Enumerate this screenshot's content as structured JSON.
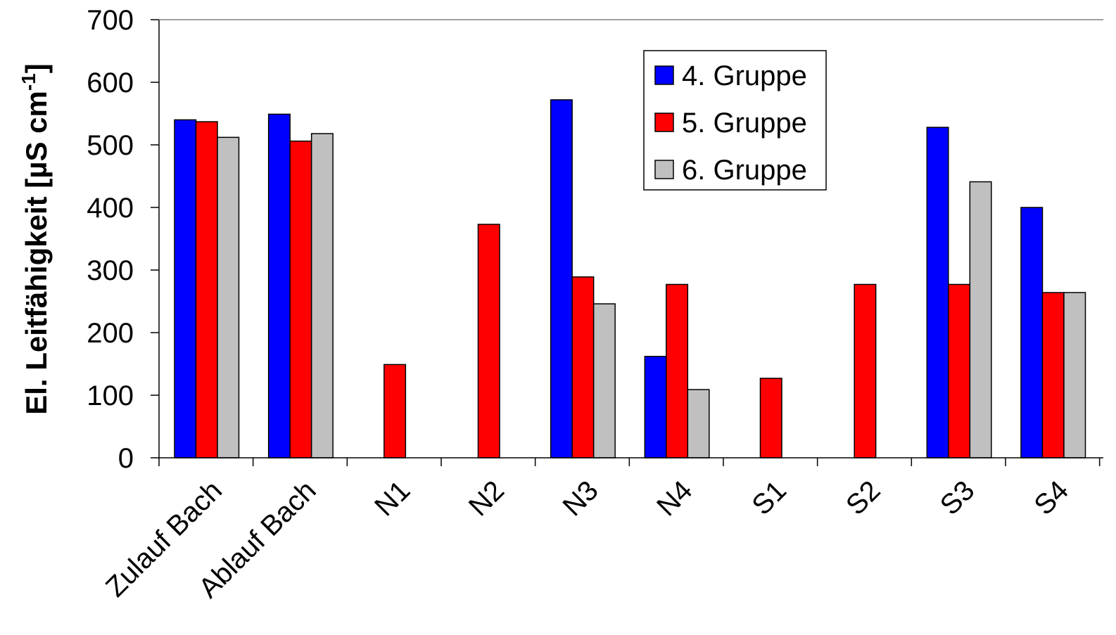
{
  "chart_data": {
    "type": "bar",
    "title": "",
    "xlabel": "",
    "ylabel": "El. Leitfähigkeit [µS cm",
    "ylabel_superscript": "-1",
    "ylabel_suffix": "]",
    "ylim": [
      0,
      700
    ],
    "yticks": [
      "0",
      "100",
      "200",
      "300",
      "400",
      "500",
      "600",
      "700"
    ],
    "grid": false,
    "legend_position": "top-center",
    "categories": [
      "Zulauf Bach",
      "Ablauf Bach",
      "N1",
      "N2",
      "N3",
      "N4",
      "S1",
      "S2",
      "S3",
      "S4"
    ],
    "series": [
      {
        "name": "4. Gruppe",
        "color": "#0000FF",
        "values": [
          540,
          549,
          null,
          null,
          572,
          162,
          null,
          null,
          528,
          400
        ]
      },
      {
        "name": "5. Gruppe",
        "color": "#FF0000",
        "values": [
          537,
          506,
          149,
          373,
          289,
          277,
          127,
          277,
          277,
          264
        ]
      },
      {
        "name": "6. Gruppe",
        "color": "#C0C0C0",
        "values": [
          512,
          518,
          null,
          null,
          246,
          109,
          null,
          null,
          441,
          264
        ]
      }
    ]
  }
}
